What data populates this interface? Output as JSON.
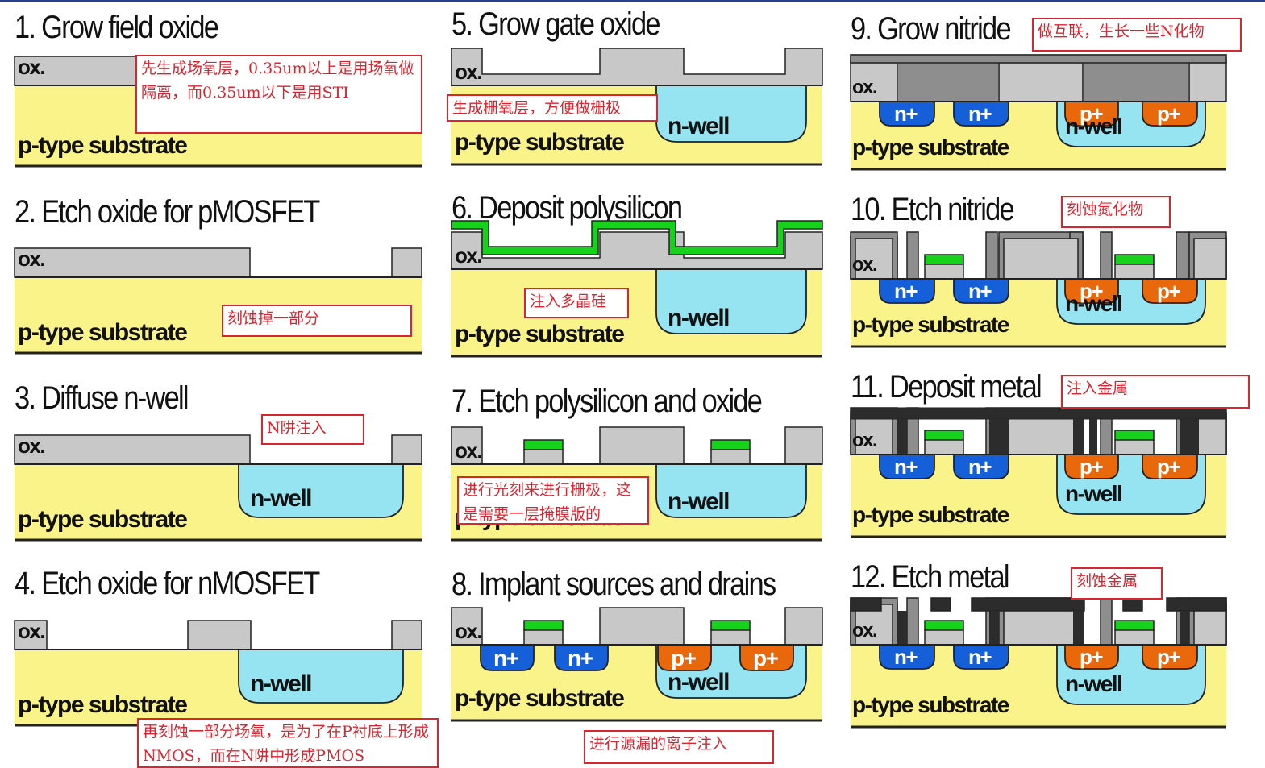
{
  "labels": {
    "oxide": "ox.",
    "substrate": "p-type substrate",
    "nwell": "n-well",
    "nplus": "n+",
    "pplus": "p+"
  },
  "colors": {
    "substrate": "#f9f38a",
    "oxide": "#c8c8c8",
    "nitride_dark": "#8e8e8e",
    "nwell": "#96e3f1",
    "nplus": "#1560d8",
    "pplus": "#e9680c",
    "polysilicon": "#16d21c",
    "metal": "#2c2c2c",
    "note_border": "#d9252f"
  },
  "steps": [
    {
      "title": "1. Grow field oxide",
      "note": "先生成场氧层，0.35um以上是用场氧做隔离，而0.35um以下是用STI"
    },
    {
      "title": "2. Etch oxide for pMOSFET",
      "note": "刻蚀掉一部分"
    },
    {
      "title": "3. Diffuse n-well",
      "note": "N阱注入"
    },
    {
      "title": "4. Etch oxide for nMOSFET",
      "note": "再刻蚀一部分场氧，是为了在P衬底上形成NMOS，而在N阱中形成PMOS"
    },
    {
      "title": "5. Grow gate oxide",
      "note": "生成栅氧层，方便做栅极"
    },
    {
      "title": "6. Deposit polysilicon",
      "note": "注入多晶硅"
    },
    {
      "title": "7. Etch polysilicon and oxide",
      "note": "进行光刻来进行栅极，这是需要一层掩膜版的"
    },
    {
      "title": "8. Implant sources and drains",
      "note": "进行源漏的离子注入"
    },
    {
      "title": "9. Grow nitride",
      "note": "做互联，生长一些N化物"
    },
    {
      "title": "10. Etch nitride",
      "note": "刻蚀氮化物"
    },
    {
      "title": "11. Deposit metal",
      "note": "注入金属"
    },
    {
      "title": "12. Etch metal",
      "note": "刻蚀金属"
    }
  ]
}
